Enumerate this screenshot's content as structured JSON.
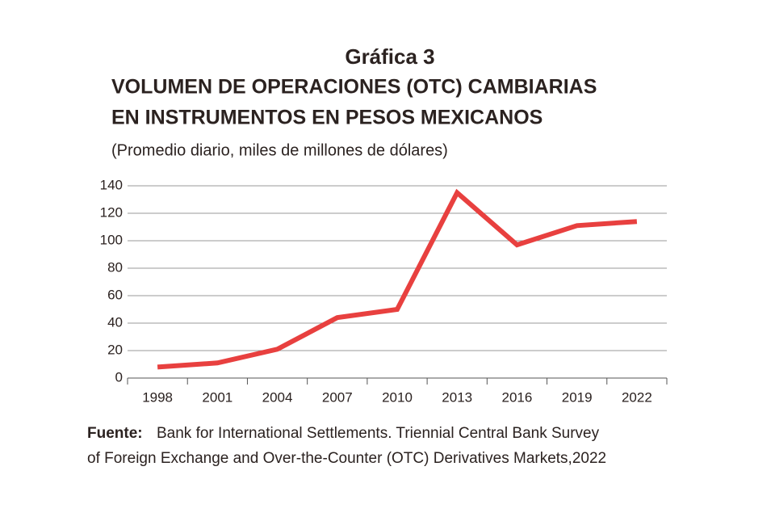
{
  "chart_data": {
    "type": "line",
    "title": "Gráfica 3",
    "subtitle": [
      "VOLUMEN DE OPERACIONES (OTC) CAMBIARIAS",
      "EN INSTRUMENTOS EN PESOS MEXICANOS"
    ],
    "y_label": "(Promedio diario, miles de millones de dólares)",
    "categories": [
      "1998",
      "2001",
      "2004",
      "2007",
      "2010",
      "2013",
      "2016",
      "2019",
      "2022"
    ],
    "values": [
      8,
      11,
      21,
      44,
      50,
      135,
      97,
      111,
      114
    ],
    "color": "#e8403f",
    "ylim": [
      0,
      140
    ],
    "yticks": [
      0,
      20,
      40,
      60,
      80,
      100,
      120,
      140
    ],
    "grid": true,
    "source_label": "Fuente:",
    "source": [
      "Bank for International Settlements. Triennial Central Bank Survey",
      "of Foreign Exchange and Over-the-Counter (OTC) Derivatives Markets,2022"
    ]
  }
}
